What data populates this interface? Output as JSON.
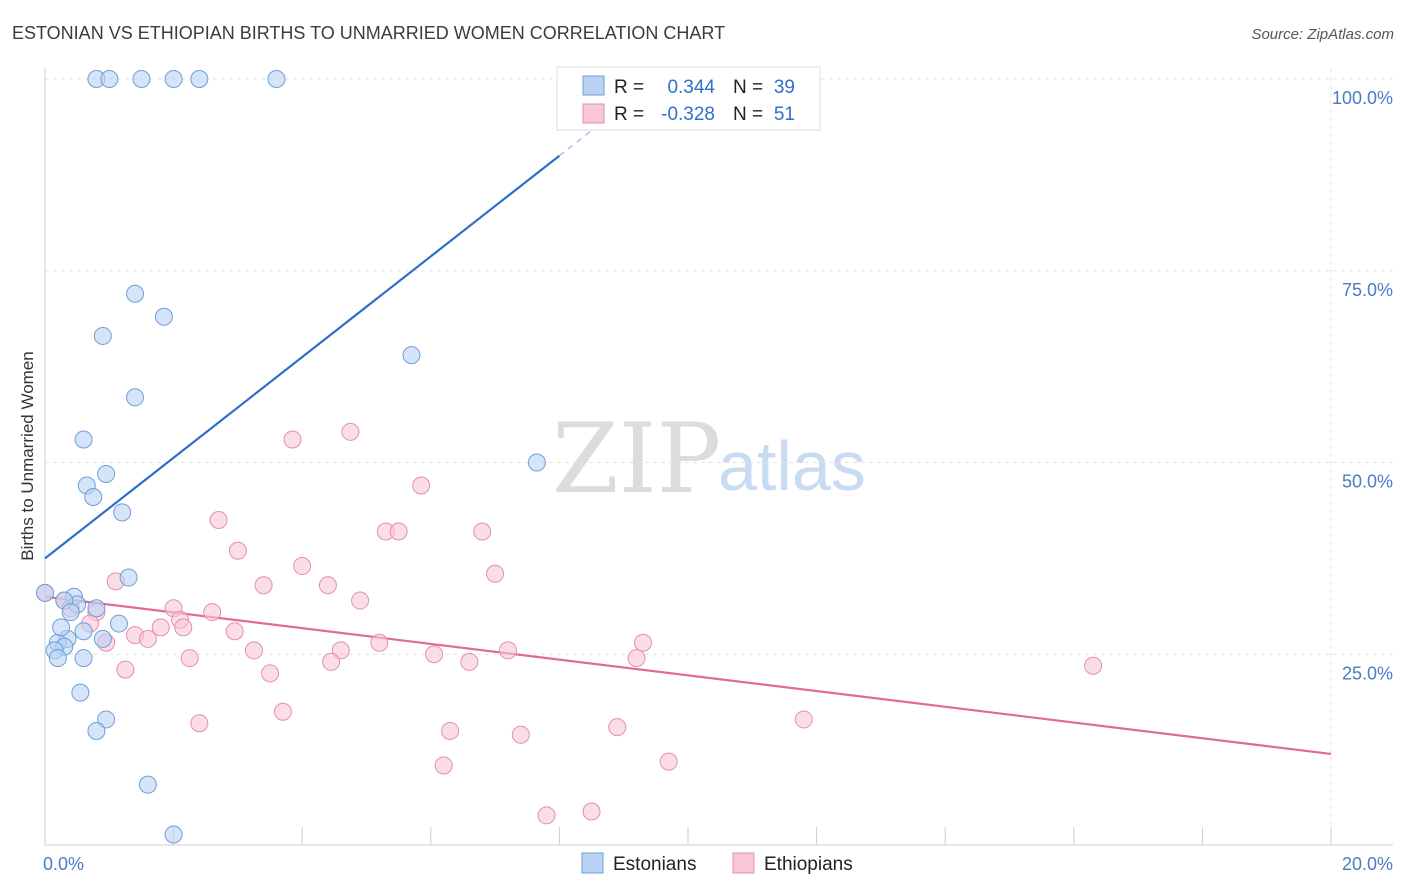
{
  "title": "ESTONIAN VS ETHIOPIAN BIRTHS TO UNMARRIED WOMEN CORRELATION CHART",
  "source": "Source: ZipAtlas.com",
  "watermark": {
    "zip": "ZIP",
    "atlas": "atlas"
  },
  "legend_top": {
    "row1": {
      "r_label": "R =",
      "r_value": "0.344",
      "n_label": "N =",
      "n_value": "39"
    },
    "row2": {
      "r_label": "R =",
      "r_value": "-0.328",
      "n_label": "N =",
      "n_value": "51"
    }
  },
  "legend_bottom": {
    "s1": "Estonians",
    "s2": "Ethiopians"
  },
  "colors": {
    "blue_fill": "#b9d2f3",
    "blue_stroke": "#6f9fd8",
    "blue_line": "#2f6fc8",
    "pink_fill": "#f9c6d5",
    "pink_stroke": "#e48fac",
    "pink_line": "#e06b98",
    "grid": "#e2e2e2",
    "tick": "#4a7cc4"
  },
  "chart_data": {
    "type": "scatter",
    "title": "ESTONIAN VS ETHIOPIAN BIRTHS TO UNMARRIED WOMEN CORRELATION CHART",
    "xlabel": "",
    "ylabel": "Births to Unmarried Women",
    "xlim": [
      0,
      20
    ],
    "ylim": [
      0,
      100
    ],
    "x_tick_labels": [
      "0.0%",
      "20.0%"
    ],
    "y_ticks": [
      25,
      50,
      75,
      100
    ],
    "y_tick_labels": [
      "25.0%",
      "50.0%",
      "75.0%",
      "100.0%"
    ],
    "series": [
      {
        "name": "Estonians",
        "R": 0.344,
        "N": 39,
        "trend": {
          "x0": 0.0,
          "y0": 37.5,
          "x1": 8.0,
          "y1": 90.0,
          "dash_to_x": 9.3
        },
        "points": [
          [
            0.8,
            100
          ],
          [
            1.0,
            100
          ],
          [
            1.5,
            100
          ],
          [
            2.0,
            100
          ],
          [
            2.4,
            100
          ],
          [
            3.6,
            100
          ],
          [
            1.4,
            72
          ],
          [
            1.85,
            69
          ],
          [
            0.9,
            66.5
          ],
          [
            5.7,
            64
          ],
          [
            1.4,
            58.5
          ],
          [
            0.6,
            53
          ],
          [
            0.95,
            48.5
          ],
          [
            0.65,
            47
          ],
          [
            0.75,
            45.5
          ],
          [
            1.2,
            43.5
          ],
          [
            7.65,
            50
          ],
          [
            1.3,
            35
          ],
          [
            0.45,
            32.5
          ],
          [
            0.5,
            31.5
          ],
          [
            0.8,
            31
          ],
          [
            1.15,
            29
          ],
          [
            0.9,
            27
          ],
          [
            0.35,
            27
          ],
          [
            0.2,
            26.5
          ],
          [
            0.3,
            26
          ],
          [
            0.15,
            25.5
          ],
          [
            0.2,
            24.5
          ],
          [
            0.6,
            24.5
          ],
          [
            0.55,
            20
          ],
          [
            0.95,
            16.5
          ],
          [
            0.8,
            15
          ],
          [
            1.6,
            8
          ],
          [
            2.0,
            1.5
          ],
          [
            0.0,
            33
          ],
          [
            0.3,
            32
          ],
          [
            0.6,
            28
          ],
          [
            0.4,
            30.5
          ],
          [
            0.25,
            28.5
          ]
        ]
      },
      {
        "name": "Ethiopians",
        "R": -0.328,
        "N": 51,
        "trend": {
          "x0": 0.0,
          "y0": 32.5,
          "x1": 20.0,
          "y1": 12.0
        },
        "points": [
          [
            0.0,
            33
          ],
          [
            0.3,
            32
          ],
          [
            0.4,
            31
          ],
          [
            0.8,
            30.5
          ],
          [
            0.7,
            29
          ],
          [
            1.1,
            34.5
          ],
          [
            2.7,
            42.5
          ],
          [
            3.0,
            38.5
          ],
          [
            3.4,
            34
          ],
          [
            4.0,
            36.5
          ],
          [
            4.4,
            34
          ],
          [
            4.9,
            32
          ],
          [
            3.85,
            53
          ],
          [
            4.75,
            54
          ],
          [
            5.85,
            47
          ],
          [
            6.8,
            41
          ],
          [
            5.3,
            41
          ],
          [
            5.5,
            41
          ],
          [
            7.0,
            35.5
          ],
          [
            2.0,
            31
          ],
          [
            2.6,
            30.5
          ],
          [
            2.1,
            29.5
          ],
          [
            1.8,
            28.5
          ],
          [
            1.4,
            27.5
          ],
          [
            1.6,
            27
          ],
          [
            0.95,
            26.5
          ],
          [
            2.95,
            28
          ],
          [
            3.25,
            25.5
          ],
          [
            5.2,
            26.5
          ],
          [
            4.6,
            25.5
          ],
          [
            6.05,
            25
          ],
          [
            6.6,
            24
          ],
          [
            7.2,
            25.5
          ],
          [
            9.3,
            26.5
          ],
          [
            9.2,
            24.5
          ],
          [
            4.45,
            24
          ],
          [
            2.25,
            24.5
          ],
          [
            1.25,
            23
          ],
          [
            3.5,
            22.5
          ],
          [
            16.3,
            23.5
          ],
          [
            3.7,
            17.5
          ],
          [
            2.4,
            16
          ],
          [
            6.3,
            15
          ],
          [
            8.9,
            15.5
          ],
          [
            7.4,
            14.5
          ],
          [
            11.8,
            16.5
          ],
          [
            6.2,
            10.5
          ],
          [
            9.7,
            11
          ],
          [
            7.8,
            4
          ],
          [
            8.5,
            4.5
          ],
          [
            2.15,
            28.5
          ]
        ]
      }
    ]
  }
}
